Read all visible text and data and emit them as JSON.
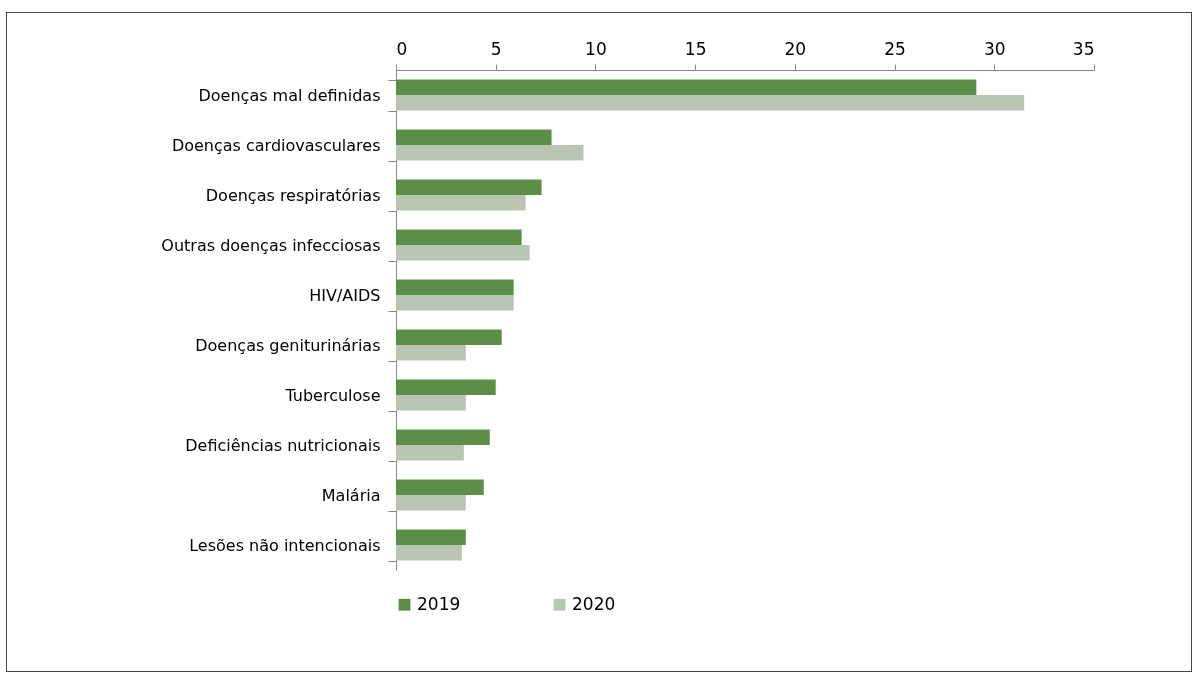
{
  "chart_data": {
    "type": "bar",
    "orientation": "horizontal",
    "categories": [
      "Doenças mal definidas",
      "Doenças cardiovasculares",
      "Doenças respiratórias",
      "Outras doenças infecciosas",
      "HIV/AIDS",
      "Doenças geniturinárias",
      "Tuberculose",
      "Deficiências nutricionais",
      "Malária",
      "Lesões não intencionais"
    ],
    "series": [
      {
        "name": "2019",
        "color": "#5b8f47",
        "values": [
          29.1,
          7.8,
          7.3,
          6.3,
          5.9,
          5.3,
          5.0,
          4.7,
          4.4,
          3.5
        ]
      },
      {
        "name": "2020",
        "color": "#b9c5b2",
        "values": [
          31.5,
          9.4,
          6.5,
          6.7,
          5.9,
          3.5,
          3.5,
          3.4,
          3.5,
          3.3
        ]
      }
    ],
    "xlim": [
      0,
      35
    ],
    "xticks": [
      0,
      5,
      10,
      15,
      20,
      25,
      30,
      35
    ],
    "grid": false,
    "legend": "bottom"
  }
}
